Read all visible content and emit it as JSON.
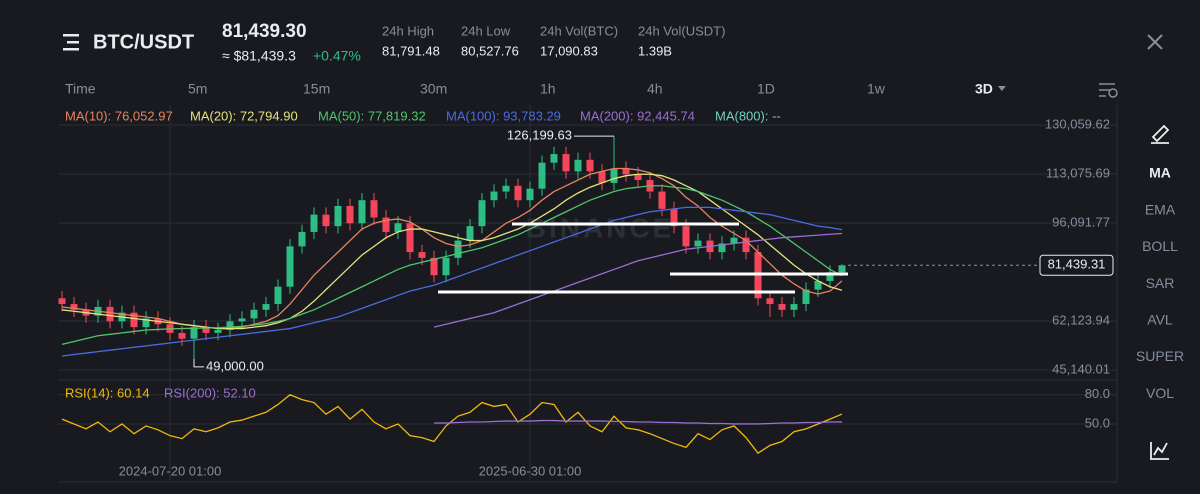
{
  "header": {
    "symbol": "BTC/USDT",
    "price": "81,439.30",
    "price_approx": "≈ $81,439.3",
    "change": "+0.47%",
    "stats": [
      {
        "label": "24h High",
        "value": "81,791.48"
      },
      {
        "label": "24h Low",
        "value": "80,527.76"
      },
      {
        "label": "24h Vol(BTC)",
        "value": "17,090.83"
      },
      {
        "label": "24h Vol(USDT)",
        "value": "1.39B"
      }
    ]
  },
  "timeframes": [
    "Time",
    "5m",
    "15m",
    "30m",
    "1h",
    "4h",
    "1D",
    "1w",
    "3D"
  ],
  "active_timeframe": 8,
  "tools": [
    "MA",
    "EMA",
    "BOLL",
    "SAR",
    "AVL",
    "SUPER",
    "VOL"
  ],
  "active_tool": 0,
  "chart_data": {
    "type": "candlestick",
    "watermark": "BINANCE",
    "ylim": [
      41667,
      135270
    ],
    "yticks": [
      {
        "value": 130059.62,
        "label": "130,059.62"
      },
      {
        "value": 113075.69,
        "label": "113,075.69"
      },
      {
        "value": 96091.77,
        "label": "96,091.77"
      },
      {
        "value": 62123.94,
        "label": "62,123.94"
      },
      {
        "value": 45140.01,
        "label": "45,140.01"
      }
    ],
    "price_line": {
      "value": 81439.31,
      "label": "81,439.31"
    },
    "xticks": [
      {
        "value": 9,
        "label": "2024-07-20 01:00"
      },
      {
        "value": 39,
        "label": "2025-06-30 01:00"
      }
    ],
    "max_label": "126,199.63",
    "min_label": "49,000.00",
    "up_color": "#2ebd85",
    "down_color": "#f6465d",
    "open": [
      70000,
      68000,
      66000,
      64000,
      67000,
      62000,
      65000,
      60000,
      63000,
      61000,
      58000,
      56000,
      60000,
      58000,
      59000,
      62000,
      63000,
      66000,
      68000,
      74000,
      88000,
      93000,
      99000,
      95000,
      102000,
      96000,
      104000,
      98000,
      93000,
      96000,
      86000,
      84000,
      78000,
      84000,
      90000,
      95000,
      104000,
      107000,
      109000,
      104000,
      108000,
      117000,
      120000,
      114000,
      118000,
      114000,
      110000,
      115000,
      113000,
      111000,
      107000,
      101000,
      95000,
      88000,
      90000,
      86000,
      89000,
      91000,
      86000,
      70000,
      68000,
      66000,
      68000,
      73000,
      76000,
      79000
    ],
    "high": [
      72500,
      70500,
      68500,
      69500,
      69500,
      67500,
      67500,
      65500,
      65500,
      63500,
      60500,
      62500,
      62500,
      61500,
      64500,
      65500,
      68500,
      70500,
      76500,
      90500,
      95500,
      101500,
      101500,
      104500,
      104500,
      106500,
      106500,
      100500,
      98500,
      98500,
      88500,
      86500,
      86500,
      92500,
      97500,
      106500,
      109500,
      111500,
      111500,
      110500,
      119500,
      122500,
      122500,
      120500,
      120500,
      116500,
      126199.63,
      117500,
      115500,
      113500,
      109500,
      103500,
      97500,
      92500,
      92500,
      91500,
      93500,
      93500,
      88500,
      72500,
      70500,
      70500,
      75500,
      78500,
      81500,
      81791.48
    ],
    "low": [
      65500,
      63500,
      61500,
      61500,
      59500,
      59500,
      57500,
      57500,
      58500,
      55500,
      53500,
      49000,
      55500,
      55500,
      56500,
      59500,
      60500,
      63500,
      65500,
      71500,
      85500,
      90500,
      92500,
      92500,
      93500,
      93500,
      95500,
      90500,
      90500,
      83500,
      81500,
      75500,
      75500,
      81500,
      87500,
      92500,
      101500,
      104500,
      101500,
      101500,
      105500,
      114500,
      111500,
      111500,
      111500,
      107500,
      107500,
      110500,
      108500,
      104500,
      98500,
      92500,
      85500,
      85500,
      83500,
      83500,
      86500,
      83500,
      67500,
      63500,
      63500,
      63500,
      65500,
      70500,
      73500,
      78500
    ],
    "close": [
      68000,
      66000,
      64000,
      67000,
      62000,
      65000,
      60000,
      63000,
      61000,
      58000,
      56000,
      60000,
      58000,
      59000,
      62000,
      63000,
      66000,
      68000,
      74000,
      88000,
      93000,
      99000,
      95000,
      102000,
      96000,
      104000,
      98000,
      93000,
      96000,
      86000,
      84000,
      78000,
      84000,
      90000,
      95000,
      104000,
      107000,
      109000,
      104000,
      108000,
      117000,
      120000,
      114000,
      118000,
      114000,
      110000,
      115000,
      113000,
      111000,
      107000,
      101000,
      95000,
      88000,
      90000,
      86000,
      89000,
      91000,
      86000,
      70000,
      68000,
      66000,
      68000,
      73000,
      76000,
      79000,
      81439.3
    ],
    "series": [
      {
        "name": "MA(10): 76,052.97",
        "color": "#e8825f",
        "values": [
          67000,
          66500,
          66000,
          65500,
          65000,
          64500,
          64000,
          63500,
          63000,
          62000,
          61000,
          60500,
          60000,
          59500,
          59500,
          60000,
          61000,
          62000,
          64000,
          68000,
          73000,
          78000,
          82000,
          86000,
          90000,
          94000,
          96000,
          97000,
          97500,
          96500,
          94000,
          91000,
          89000,
          88000,
          88500,
          90000,
          93000,
          96000,
          98000,
          100500,
          104000,
          107000,
          109000,
          111000,
          113000,
          114000,
          115000,
          115000,
          114500,
          113500,
          111500,
          109000,
          105000,
          102000,
          98000,
          95000,
          92500,
          90000,
          86000,
          82000,
          78000,
          75000,
          72500,
          71500,
          72500,
          76052.97
        ]
      },
      {
        "name": "MA(20): 72,794.90",
        "color": "#e6e27a",
        "values": [
          66000,
          65500,
          65000,
          64500,
          64000,
          63500,
          63000,
          62500,
          62000,
          61500,
          61000,
          60500,
          60000,
          59500,
          59500,
          59500,
          60000,
          60500,
          61500,
          63000,
          65500,
          69000,
          73000,
          77000,
          81000,
          85000,
          88000,
          91000,
          93000,
          94000,
          94000,
          93000,
          92000,
          91000,
          90000,
          90000,
          91000,
          92500,
          94000,
          96000,
          98500,
          101000,
          104000,
          106500,
          108500,
          110000,
          111500,
          112500,
          113000,
          113000,
          112500,
          111000,
          109000,
          107000,
          104000,
          101000,
          98000,
          95000,
          92000,
          88500,
          85000,
          81500,
          78500,
          76000,
          74000,
          72794.9
        ]
      },
      {
        "name": "MA(50): 77,819.32",
        "color": "#52c46a",
        "values": [
          54000,
          55000,
          56000,
          57000,
          57500,
          58000,
          58500,
          59000,
          59200,
          59400,
          59500,
          59600,
          59700,
          59800,
          60000,
          60300,
          60700,
          61200,
          62000,
          63000,
          64500,
          66000,
          68000,
          70000,
          72000,
          74000,
          76000,
          78000,
          80000,
          81500,
          82500,
          83500,
          84500,
          85500,
          86500,
          87500,
          89000,
          90500,
          92000,
          94000,
          96000,
          98000,
          100000,
          102000,
          104000,
          105500,
          107000,
          108000,
          108500,
          109000,
          109000,
          108500,
          108000,
          107000,
          105500,
          104000,
          102000,
          100000,
          97500,
          95000,
          92000,
          89000,
          86000,
          83000,
          80000,
          77819.32
        ]
      },
      {
        "name": "MA(100): 93,783.29",
        "color": "#4b6be0",
        "values": [
          50000,
          50500,
          51000,
          51500,
          52000,
          52500,
          53000,
          53500,
          54000,
          54500,
          55000,
          55500,
          56000,
          56500,
          57000,
          57500,
          58000,
          58500,
          59000,
          59500,
          60500,
          61500,
          62500,
          63500,
          65000,
          66500,
          68000,
          69500,
          71000,
          72500,
          73500,
          74500,
          76000,
          77500,
          79000,
          80500,
          82000,
          83500,
          85000,
          86500,
          88000,
          89500,
          91000,
          92500,
          94000,
          95500,
          97000,
          98000,
          99000,
          100000,
          100500,
          101000,
          101500,
          101500,
          101500,
          101000,
          100500,
          100000,
          99500,
          99000,
          98000,
          97000,
          96000,
          95000,
          94500,
          93783.29
        ]
      },
      {
        "name": "MA(200): 92,445.74",
        "color": "#9a6fd0",
        "values": [
          null,
          null,
          null,
          null,
          null,
          null,
          null,
          null,
          null,
          null,
          null,
          null,
          null,
          null,
          null,
          null,
          null,
          null,
          null,
          null,
          null,
          null,
          null,
          null,
          null,
          null,
          null,
          null,
          null,
          null,
          null,
          60000,
          61000,
          62000,
          63000,
          64000,
          65000,
          66500,
          68000,
          69500,
          71000,
          72500,
          74000,
          75500,
          77000,
          78500,
          80000,
          81500,
          83000,
          84000,
          85000,
          86000,
          87000,
          87500,
          88000,
          88500,
          89000,
          89500,
          90000,
          90500,
          91000,
          91300,
          91600,
          91900,
          92200,
          92445.74
        ]
      },
      {
        "name": "MA(800): --",
        "color": "#6fd0c0"
      }
    ],
    "rsi": {
      "ylim": [
        13,
        90
      ],
      "yticks": [
        {
          "value": 80,
          "label": "80.0"
        },
        {
          "value": 50,
          "label": "50.0"
        }
      ],
      "series": [
        {
          "name": "RSI(14): 60.14",
          "color": "#f0b90b",
          "values": [
            55,
            50,
            45,
            52,
            42,
            50,
            40,
            48,
            44,
            38,
            35,
            45,
            42,
            46,
            52,
            54,
            58,
            62,
            70,
            80,
            75,
            72,
            60,
            68,
            55,
            65,
            52,
            45,
            50,
            38,
            36,
            32,
            48,
            58,
            62,
            72,
            68,
            70,
            52,
            60,
            72,
            70,
            52,
            62,
            48,
            42,
            58,
            46,
            44,
            40,
            35,
            30,
            26,
            40,
            34,
            44,
            48,
            36,
            20,
            28,
            32,
            42,
            45,
            50,
            55,
            60.14
          ]
        },
        {
          "name": "RSI(200): 52.10",
          "color": "#9a6fd0",
          "values": [
            null,
            null,
            null,
            null,
            null,
            null,
            null,
            null,
            null,
            null,
            null,
            null,
            null,
            null,
            null,
            null,
            null,
            null,
            null,
            null,
            null,
            null,
            null,
            null,
            null,
            null,
            null,
            null,
            null,
            null,
            null,
            51,
            51,
            51.5,
            52,
            52,
            52.5,
            53,
            53,
            53,
            53.5,
            53.5,
            53,
            53,
            53,
            53,
            52.5,
            52.5,
            52,
            52,
            51.5,
            51.5,
            51,
            51,
            50.5,
            50.5,
            50,
            50,
            50,
            50.5,
            51,
            51,
            51.5,
            51.5,
            52,
            52.1
          ]
        }
      ]
    }
  }
}
